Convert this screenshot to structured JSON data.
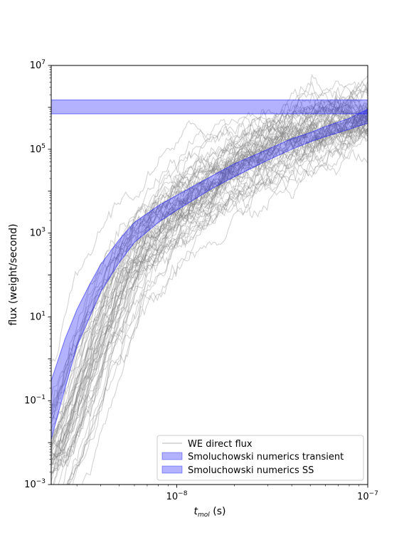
{
  "chart_data": {
    "type": "line",
    "title": "",
    "xlabel": {
      "base": "t",
      "sub": "mol",
      "unit": " (s)"
    },
    "ylabel": "flux (weight/second)",
    "x_scale": "log",
    "y_scale": "log",
    "xlim": [
      2.2e-09,
      1e-07
    ],
    "ylim": [
      0.001,
      10000000
    ],
    "x_ticks": [
      {
        "value": 1e-08,
        "base": "10",
        "exp": "−8"
      },
      {
        "value": 1e-07,
        "base": "10",
        "exp": "−7"
      }
    ],
    "y_ticks": [
      {
        "value": 0.001,
        "base": "10",
        "exp": "−3"
      },
      {
        "value": 0.1,
        "base": "10",
        "exp": "−1"
      },
      {
        "value": 10,
        "base": "10",
        "exp": "1"
      },
      {
        "value": 1000,
        "base": "10",
        "exp": "3"
      },
      {
        "value": 100000,
        "base": "10",
        "exp": "5"
      },
      {
        "value": 10000000,
        "base": "10",
        "exp": "7"
      }
    ],
    "grid": false,
    "legend_position": "lower right",
    "series": [
      {
        "name": "WE direct flux",
        "kind": "trajectory_ensemble",
        "color": "#808080",
        "trajectory_count": 60,
        "median_trend": {
          "x": [
            2.2e-09,
            3e-09,
            4e-09,
            6e-09,
            1e-08,
            2e-08,
            4e-08,
            7e-08,
            1e-07
          ],
          "y": [
            0.003,
            0.1,
            5,
            300,
            4000,
            40000,
            200000,
            500000,
            600000
          ]
        }
      },
      {
        "name": "Smoluchowski numerics transient",
        "kind": "band",
        "color": "#0000ff",
        "x": [
          2.2e-09,
          2.6e-09,
          3e-09,
          3.5e-09,
          4e-09,
          5e-09,
          6e-09,
          8e-09,
          1e-08,
          1.5e-08,
          2e-08,
          3e-08,
          4e-08,
          5e-08,
          6e-08,
          8e-08,
          1e-07
        ],
        "lower": [
          0.012,
          0.2,
          2,
          10,
          40,
          200,
          600,
          1800,
          3500,
          11000,
          22000,
          55000,
          100000,
          150000,
          200000,
          300000,
          420000
        ],
        "upper": [
          0.3,
          3,
          15,
          60,
          180,
          700,
          1800,
          4500,
          8000,
          22000,
          45000,
          100000,
          180000,
          250000,
          350000,
          550000,
          900000
        ]
      },
      {
        "name": "Smoluchowski numerics SS",
        "kind": "band",
        "color": "#0000ff",
        "x": [
          2.2e-09,
          1e-07
        ],
        "lower": [
          700000,
          700000
        ],
        "upper": [
          1500000,
          1500000
        ]
      }
    ]
  }
}
